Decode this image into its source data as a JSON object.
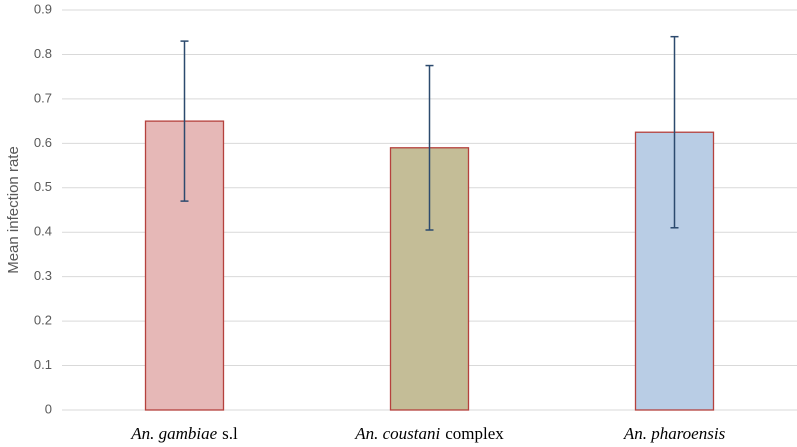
{
  "chart_data": {
    "type": "bar",
    "y_label": "Mean infection rate",
    "categories": [
      [
        "An. gambiae",
        "s.l"
      ],
      [
        "An. coustani",
        "complex"
      ],
      [
        "An. pharoensis"
      ]
    ],
    "series": [
      {
        "name": "Mean infection rate",
        "values": [
          0.65,
          0.59,
          0.625
        ],
        "errors": [
          0.18,
          0.185,
          0.215
        ],
        "colors": [
          "#e6b8b7",
          "#c4bd97",
          "#b9cde5"
        ],
        "edge_color": "#b5413d",
        "error_color": "#2c4a6e"
      }
    ],
    "ylim": [
      0,
      0.9
    ],
    "yticks": [
      0,
      0.1,
      0.2,
      0.3,
      0.4,
      0.5,
      0.6,
      0.7,
      0.8,
      0.9
    ],
    "grid": true
  }
}
